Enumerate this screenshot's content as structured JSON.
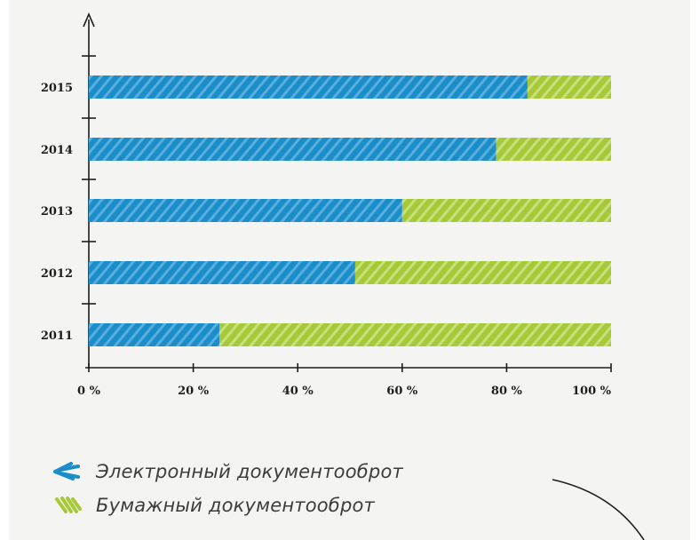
{
  "chart_data": {
    "type": "bar",
    "orientation": "horizontal",
    "stacked": true,
    "categories": [
      "2015",
      "2014",
      "2013",
      "2012",
      "2011"
    ],
    "series": [
      {
        "name": "Электронный документооброт",
        "color": "#1b8dc9",
        "values": [
          84,
          78,
          60,
          51,
          25
        ]
      },
      {
        "name": "Бумажный документооброт",
        "color": "#a6c93a",
        "values": [
          16,
          22,
          40,
          49,
          75
        ]
      }
    ],
    "xticks": [
      "0 %",
      "20 %",
      "40 %",
      "60 %",
      "80 %",
      "100 %"
    ],
    "xlim": [
      0,
      100
    ],
    "grid": false,
    "legend_position": "bottom-left"
  }
}
